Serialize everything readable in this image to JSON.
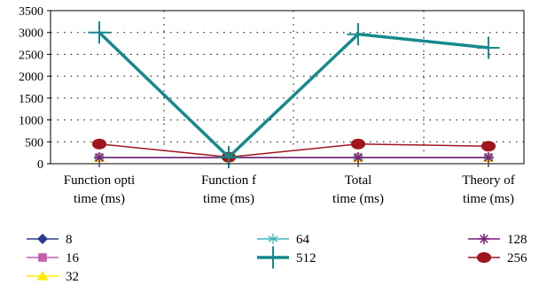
{
  "chart_data": {
    "type": "line",
    "categories": [
      [
        "Function opti",
        "time (ms)"
      ],
      [
        "Function f",
        "time (ms)"
      ],
      [
        "Total",
        "time (ms)"
      ],
      [
        "Theory of",
        "time (ms)"
      ]
    ],
    "ylim": [
      0,
      3500
    ],
    "yticks": [
      0,
      500,
      1000,
      1500,
      2000,
      2500,
      3000,
      3500
    ],
    "grid": true,
    "legend_position": "bottom",
    "series": [
      {
        "name": "8",
        "values": [
          140,
          140,
          140,
          140
        ],
        "color": "#2b3a8f",
        "marker": "diamond",
        "width": 1.5
      },
      {
        "name": "16",
        "values": [
          140,
          140,
          140,
          140
        ],
        "color": "#c45fae",
        "marker": "square",
        "width": 1.5
      },
      {
        "name": "32",
        "values": [
          140,
          140,
          140,
          140
        ],
        "color": "#ffeb00",
        "marker": "triangle",
        "width": 1.5
      },
      {
        "name": "64",
        "values": [
          140,
          140,
          140,
          140
        ],
        "color": "#3fb6bc",
        "marker": "star",
        "width": 1.5
      },
      {
        "name": "128",
        "values": [
          140,
          140,
          140,
          140
        ],
        "color": "#7a1f7e",
        "marker": "asterisk",
        "width": 1.5
      },
      {
        "name": "256",
        "values": [
          450,
          150,
          450,
          400
        ],
        "color": "#a0151c",
        "marker": "ellipse",
        "width": 1.5
      },
      {
        "name": "512",
        "values": [
          3000,
          150,
          2960,
          2650
        ],
        "color": "#17898c",
        "marker": "plus",
        "width": 3.5
      }
    ],
    "legend_order": [
      "8",
      "64",
      "128",
      "16",
      "512",
      "256",
      "32"
    ]
  }
}
